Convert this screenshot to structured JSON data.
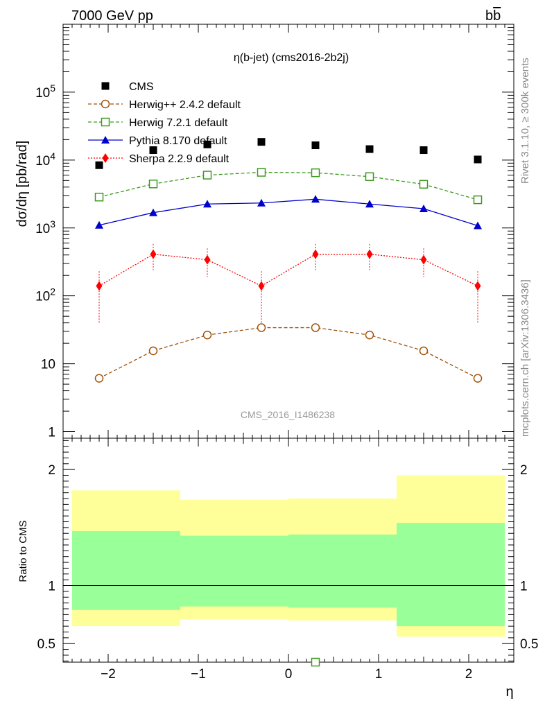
{
  "header": {
    "left": "7000 GeV pp",
    "right": "bb̅"
  },
  "side_text": {
    "top": "Rivet 3.1.10, ≥ 300k events",
    "bottom": "mcplots.cern.ch [arXiv:1306.3436]"
  },
  "chart_data": [
    {
      "type": "line",
      "title": "η(b-jet) (cms2016-2b2j)",
      "watermark": "CMS_2016_I1486238",
      "ylabel": "dσ/dη [pb/rad]",
      "xlabel": "η",
      "xlim": [
        -2.5,
        2.5
      ],
      "ylim": [
        0.8,
        1000000
      ],
      "yscale": "log",
      "ytick_labels": [
        "1",
        "10",
        "10^2",
        "10^3",
        "10^4",
        "10^5"
      ],
      "x": [
        -2.1,
        -1.5,
        -0.9,
        -0.3,
        0.3,
        0.9,
        1.5,
        2.1
      ],
      "series": [
        {
          "name": "CMS",
          "style": "data",
          "color": "#000000",
          "marker": "square-filled",
          "values": [
            8400,
            14000,
            17000,
            18500,
            16500,
            14500,
            14000,
            10200
          ]
        },
        {
          "name": "Herwig++ 2.4.2 default",
          "style": "dashed",
          "color": "#a0520a",
          "marker": "circle-open",
          "values": [
            6.1,
            15.5,
            26.5,
            34,
            34,
            26.5,
            15.5,
            6.1
          ]
        },
        {
          "name": "Herwig 7.2.1 default",
          "style": "dashed",
          "color": "#3c9a1e",
          "marker": "square-open",
          "values": [
            2850,
            4450,
            6000,
            6600,
            6500,
            5700,
            4400,
            2600
          ]
        },
        {
          "name": "Pythia 8.170 default",
          "style": "solid",
          "color": "#0000cc",
          "marker": "triangle-filled",
          "values": [
            1100,
            1680,
            2250,
            2330,
            2650,
            2250,
            1920,
            1080
          ]
        },
        {
          "name": "Sherpa 2.2.9 default",
          "style": "dotted",
          "color": "#ff0000",
          "marker": "diamond-filled",
          "values": [
            140,
            410,
            340,
            140,
            410,
            410,
            340,
            140
          ],
          "err_low": [
            40,
            240,
            190,
            40,
            240,
            240,
            190,
            40
          ],
          "err_high": [
            230,
            580,
            500,
            230,
            580,
            580,
            500,
            230
          ]
        }
      ]
    },
    {
      "type": "area",
      "ylabel": "Ratio to CMS",
      "xlabel": "η",
      "xlim": [
        -2.5,
        2.5
      ],
      "ylim": [
        0.34,
        2.27
      ],
      "ytick_labels": [
        "0.5",
        "1",
        "2"
      ],
      "xtick_labels": [
        "−2",
        "−1",
        "0",
        "1",
        "2"
      ],
      "reference_line": 1,
      "bands": [
        {
          "x_edges": [
            -2.4,
            -1.2
          ],
          "yellow": [
            0.65,
            1.82
          ],
          "green": [
            0.79,
            1.47
          ]
        },
        {
          "x_edges": [
            -1.2,
            0
          ],
          "yellow": [
            0.71,
            1.74
          ],
          "green": [
            0.82,
            1.43
          ]
        },
        {
          "x_edges": [
            0,
            1.2
          ],
          "yellow": [
            0.7,
            1.75
          ],
          "green": [
            0.81,
            1.44
          ]
        },
        {
          "x_edges": [
            1.2,
            2.4
          ],
          "yellow": [
            0.56,
            1.95
          ],
          "green": [
            0.65,
            1.54
          ]
        }
      ],
      "band_colors": {
        "yellow": "#ffff99",
        "green": "#99ff99"
      },
      "offscale_points": [
        {
          "series": "Herwig 7.2.1 default",
          "x": 0.3,
          "value": 0.34,
          "color": "#3c9a1e",
          "marker": "square-open"
        }
      ]
    }
  ]
}
